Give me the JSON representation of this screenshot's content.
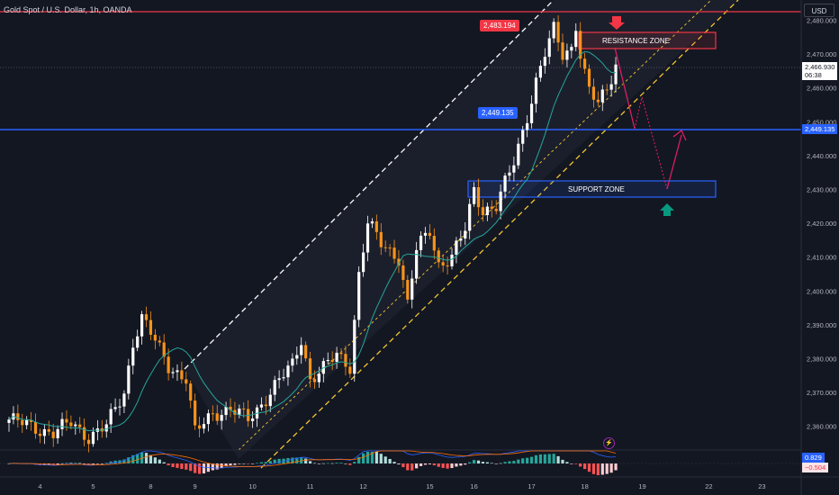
{
  "header": {
    "symbol_title": "Gold Spot / U.S. Dollar, 1h, OANDA",
    "currency_button": "USD"
  },
  "tags": {
    "high": "2,483.194",
    "level": "2,449.135"
  },
  "price_axis": {
    "current_price": "2,466.930",
    "countdown": "06:38",
    "level_price": "2,449.135",
    "indicator_pos": "0.829",
    "indicator_neg": "−0.504"
  },
  "zones": {
    "resistance": "RESISTANCE ZONE",
    "support": "SUPPORT ZONE"
  },
  "colors": {
    "bullish": "#ffffff",
    "bearish": "#f7931a",
    "ma_line": "#26a69a",
    "level_line": "#2962ff",
    "high_line": "#f23645",
    "channel_upper": "#ffffff",
    "channel_lower": "#f4c430",
    "projection": "#e91e63",
    "arrow_down": "#f23645",
    "arrow_up": "#089981"
  },
  "chart_data": {
    "type": "candlestick",
    "symbol": "Gold Spot / U.S. Dollar",
    "timeframe": "1h",
    "source": "OANDA",
    "currency": "USD",
    "ylim": [
      2353,
      2486
    ],
    "y_ticks": [
      2360,
      2370,
      2380,
      2390,
      2400,
      2410,
      2420,
      2430,
      2440,
      2450,
      2460,
      2470,
      2480
    ],
    "y_tick_labels": [
      "2,360.000",
      "2,370.000",
      "2,380.000",
      "2,390.000",
      "2,400.000",
      "2,410.000",
      "2,420.000",
      "2,430.000",
      "2,440.000",
      "2,450.000",
      "2,460.000",
      "2,470.000",
      "2,480.000"
    ],
    "x_ticks": [
      {
        "label": "4",
        "i": 7
      },
      {
        "label": "5",
        "i": 19
      },
      {
        "label": "8",
        "i": 32
      },
      {
        "label": "9",
        "i": 42
      },
      {
        "label": "10",
        "i": 55
      },
      {
        "label": "11",
        "i": 68
      },
      {
        "label": "12",
        "i": 80
      },
      {
        "label": "15",
        "i": 95
      },
      {
        "label": "16",
        "i": 105
      },
      {
        "label": "17",
        "i": 118
      },
      {
        "label": "18",
        "i": 130
      },
      {
        "label": "19",
        "i": 143
      },
      {
        "label": "22",
        "i": 158
      },
      {
        "label": "23",
        "i": 170
      }
    ],
    "candle_count": 138,
    "path_points": [
      [
        0,
        2362
      ],
      [
        5,
        2360
      ],
      [
        10,
        2358
      ],
      [
        14,
        2361
      ],
      [
        18,
        2357
      ],
      [
        22,
        2360
      ],
      [
        26,
        2370
      ],
      [
        28,
        2385
      ],
      [
        30,
        2392
      ],
      [
        33,
        2385
      ],
      [
        36,
        2378
      ],
      [
        40,
        2374
      ],
      [
        42,
        2358
      ],
      [
        46,
        2364
      ],
      [
        50,
        2365
      ],
      [
        54,
        2362
      ],
      [
        56,
        2365
      ],
      [
        60,
        2372
      ],
      [
        64,
        2378
      ],
      [
        66,
        2386
      ],
      [
        68,
        2374
      ],
      [
        71,
        2377
      ],
      [
        74,
        2381
      ],
      [
        77,
        2378
      ],
      [
        79,
        2405
      ],
      [
        81,
        2420
      ],
      [
        84,
        2414
      ],
      [
        88,
        2410
      ],
      [
        90,
        2396
      ],
      [
        92,
        2412
      ],
      [
        95,
        2418
      ],
      [
        97,
        2408
      ],
      [
        100,
        2410
      ],
      [
        103,
        2418
      ],
      [
        105,
        2430
      ],
      [
        107,
        2424
      ],
      [
        110,
        2425
      ],
      [
        114,
        2438
      ],
      [
        117,
        2452
      ],
      [
        119,
        2462
      ],
      [
        121,
        2470
      ],
      [
        123,
        2477
      ],
      [
        125,
        2470
      ],
      [
        127,
        2472
      ],
      [
        128,
        2479
      ],
      [
        129,
        2470
      ],
      [
        130,
        2464
      ],
      [
        131,
        2459
      ],
      [
        133,
        2455
      ],
      [
        135,
        2460
      ],
      [
        137,
        2466.93
      ]
    ],
    "current_price": 2466.93,
    "high_line": 2483.194,
    "level_line": 2449.135,
    "resistance_zone": [
      2473,
      2477
    ],
    "support_zone": [
      2430,
      2434
    ],
    "projection_points": [
      {
        "i": 137.5,
        "y": 2475
      },
      {
        "i": 141,
        "y": 2449
      },
      {
        "i": 149,
        "y": 2431
      },
      {
        "i": 152,
        "y": 2448
      }
    ],
    "macd_histogram_last": 0.829,
    "macd_signal_last": -0.504
  }
}
